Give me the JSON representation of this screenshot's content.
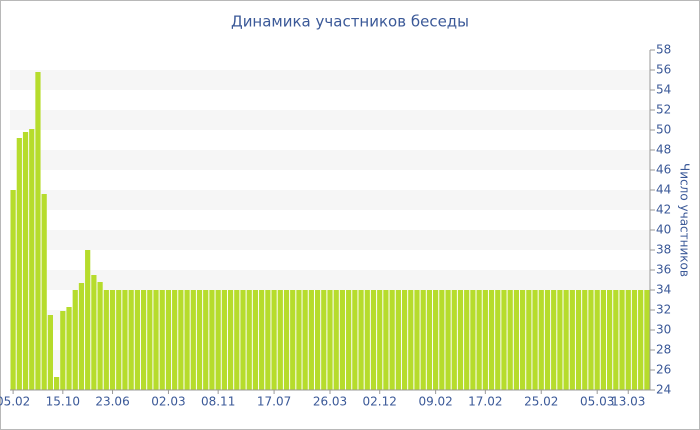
{
  "chart_data": {
    "type": "bar",
    "title": "Динамика участников беседы",
    "y_label": "Число участников",
    "color": "#b6dc2c",
    "grid": true,
    "ylim": [
      24,
      58
    ],
    "yticks": [
      24,
      26,
      28,
      30,
      32,
      34,
      36,
      38,
      40,
      42,
      44,
      46,
      48,
      50,
      52,
      54,
      56,
      58
    ],
    "categories": [
      "05.02",
      null,
      null,
      null,
      null,
      null,
      null,
      null,
      "15.10",
      null,
      null,
      null,
      null,
      null,
      null,
      null,
      "23.06",
      null,
      null,
      null,
      null,
      null,
      null,
      null,
      null,
      "02.03",
      null,
      null,
      null,
      null,
      null,
      null,
      null,
      "08.11",
      null,
      null,
      null,
      null,
      null,
      null,
      null,
      null,
      "17.07",
      null,
      null,
      null,
      null,
      null,
      null,
      null,
      null,
      "26.03",
      null,
      null,
      null,
      null,
      null,
      null,
      null,
      "02.12",
      null,
      null,
      null,
      null,
      null,
      null,
      null,
      null,
      "09.02",
      null,
      null,
      null,
      null,
      null,
      null,
      null,
      "17.02",
      null,
      null,
      null,
      null,
      null,
      null,
      null,
      null,
      "25.02",
      null,
      null,
      null,
      null,
      null,
      null,
      null,
      null,
      "05.03",
      null,
      null,
      null,
      null,
      "13.03",
      null,
      null,
      null
    ],
    "values": [
      44,
      49.2,
      49.8,
      50.1,
      55.8,
      43.6,
      31.5,
      25.3,
      31.9,
      32.3,
      34,
      34.7,
      38,
      35.5,
      34.8,
      34,
      34,
      34,
      34,
      34,
      34,
      34,
      34,
      34,
      34,
      34,
      34,
      34,
      34,
      34,
      34,
      34,
      34,
      34,
      34,
      34,
      34,
      34,
      34,
      34,
      34,
      34,
      34,
      34,
      34,
      34,
      34,
      34,
      34,
      34,
      34,
      34,
      34,
      34,
      34,
      34,
      34,
      34,
      34,
      34,
      34,
      34,
      34,
      34,
      34,
      34,
      34,
      34,
      34,
      34,
      34,
      34,
      34,
      34,
      34,
      34,
      34,
      34,
      34,
      34,
      34,
      34,
      34,
      34,
      34,
      34,
      34,
      34,
      34,
      34,
      34,
      34,
      34,
      34,
      34,
      34,
      34,
      34,
      34,
      34,
      34,
      34,
      34
    ]
  }
}
